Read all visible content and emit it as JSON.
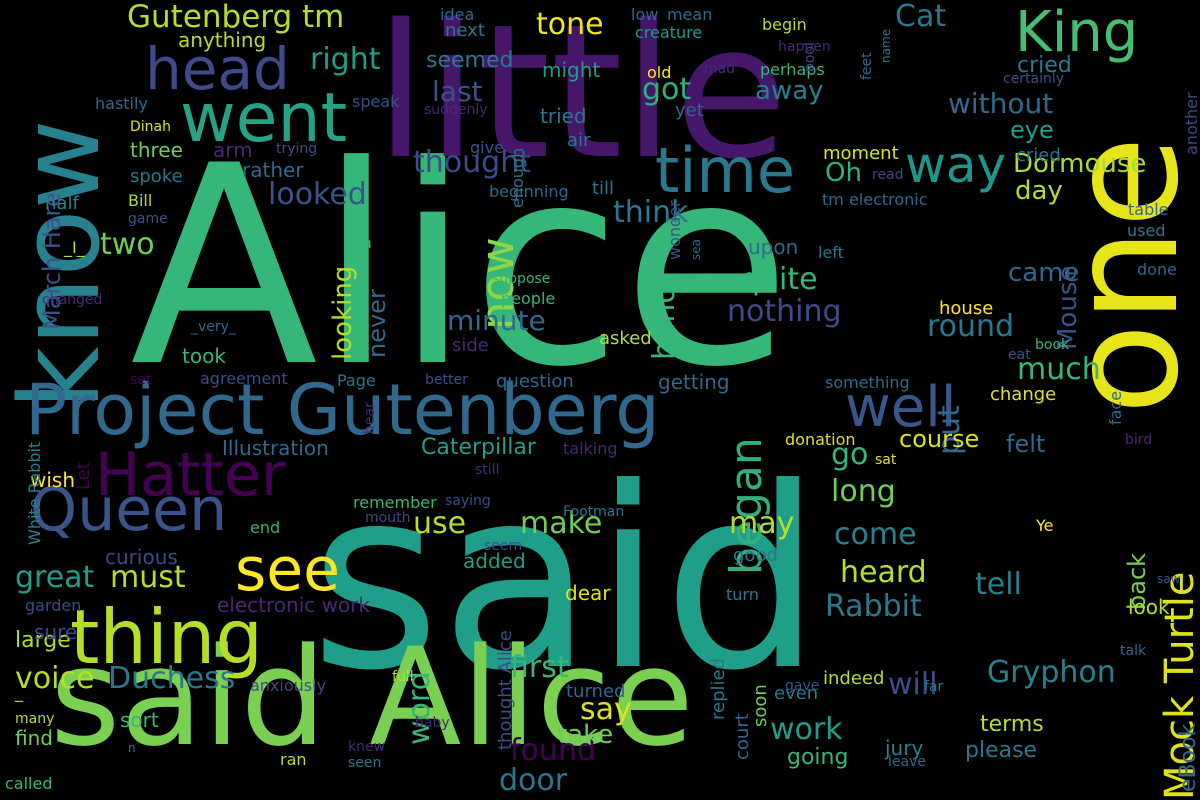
{
  "background": "#000000",
  "palette": [
    "#440154",
    "#482878",
    "#3e4a89",
    "#31688e",
    "#26828e",
    "#1f9e89",
    "#35b779",
    "#6ece58",
    "#b5de2b",
    "#fde725"
  ],
  "words": [
    {
      "text": "Alice",
      "color": "#35b779"
    },
    {
      "text": "said",
      "color": "#1f9e89"
    },
    {
      "text": "little",
      "color": "#46166b"
    },
    {
      "text": "one",
      "color": "#e7e419"
    },
    {
      "text": "know",
      "color": "#26828e"
    },
    {
      "text": "said Alice",
      "color": "#7ad151"
    },
    {
      "text": "Project Gutenberg",
      "color": "#31688e"
    },
    {
      "text": "thing",
      "color": "#b5de2b"
    },
    {
      "text": "went",
      "color": "#26a384"
    },
    {
      "text": "head",
      "color": "#3e4a89"
    },
    {
      "text": "time",
      "color": "#2a788e"
    },
    {
      "text": "King",
      "color": "#44bf70"
    },
    {
      "text": "Queen",
      "color": "#3b528b"
    },
    {
      "text": "Hatter",
      "color": "#440154"
    },
    {
      "text": "see",
      "color": "#fde725"
    },
    {
      "text": "well",
      "color": "#39568c"
    },
    {
      "text": "way",
      "color": "#1f968b"
    },
    {
      "text": "now",
      "color": "#8bd646"
    },
    {
      "text": "began",
      "color": "#2db27d"
    },
    {
      "text": "Mock Turtle",
      "color": "#dde318"
    },
    {
      "text": "Gutenberg tm",
      "color": "#b5de2b"
    },
    {
      "text": "tone",
      "color": "#f1e51d"
    },
    {
      "text": "Cat",
      "color": "#2a788e"
    },
    {
      "text": "right",
      "color": "#1f9e89"
    },
    {
      "text": "seemed",
      "color": "#2a788e"
    },
    {
      "text": "might",
      "color": "#1f9e89"
    },
    {
      "text": "got",
      "color": "#2db27d"
    },
    {
      "text": "last",
      "color": "#3b528b"
    },
    {
      "text": "away",
      "color": "#26828e"
    },
    {
      "text": "without",
      "color": "#31688e"
    },
    {
      "text": "cried",
      "color": "#2a788e"
    },
    {
      "text": "eye",
      "color": "#1f9e89"
    },
    {
      "text": "thought",
      "color": "#3e4a89"
    },
    {
      "text": "Oh",
      "color": "#2db27d"
    },
    {
      "text": "Dormouse",
      "color": "#a8db34"
    },
    {
      "text": "day",
      "color": "#b5de2b"
    },
    {
      "text": "looked",
      "color": "#3b528b"
    },
    {
      "text": "think",
      "color": "#2a788e"
    },
    {
      "text": "two",
      "color": "#6ece58"
    },
    {
      "text": "quite",
      "color": "#35b779"
    },
    {
      "text": "nothing",
      "color": "#3e4a89"
    },
    {
      "text": "round",
      "color": "#2a788e"
    },
    {
      "text": "minute",
      "color": "#31688e"
    },
    {
      "text": "hand",
      "color": "#35b779"
    },
    {
      "text": "looking",
      "color": "#b5de2b"
    },
    {
      "text": "never",
      "color": "#31688e"
    },
    {
      "text": "came",
      "color": "#31688e"
    },
    {
      "text": "Mouse",
      "color": "#3b528b"
    },
    {
      "text": "March Hare",
      "color": "#3b528b"
    },
    {
      "text": "much",
      "color": "#35b779"
    },
    {
      "text": "go",
      "color": "#35b779"
    },
    {
      "text": "long",
      "color": "#6ece58"
    },
    {
      "text": "put",
      "color": "#31688e"
    },
    {
      "text": "course",
      "color": "#dde318"
    },
    {
      "text": "felt",
      "color": "#31688e"
    },
    {
      "text": "Illustration",
      "color": "#31688e"
    },
    {
      "text": "Caterpillar",
      "color": "#1f9e89"
    },
    {
      "text": "make",
      "color": "#6ece58"
    },
    {
      "text": "use",
      "color": "#b5de2b"
    },
    {
      "text": "may",
      "color": "#b5de2b"
    },
    {
      "text": "come",
      "color": "#26828e"
    },
    {
      "text": "heard",
      "color": "#b5de2b"
    },
    {
      "text": "great",
      "color": "#1f9e89"
    },
    {
      "text": "must",
      "color": "#b5de2b"
    },
    {
      "text": "Rabbit",
      "color": "#2a788e"
    },
    {
      "text": "tell",
      "color": "#26828e"
    },
    {
      "text": "back",
      "color": "#7ad151"
    },
    {
      "text": "voice",
      "color": "#b5de2b"
    },
    {
      "text": "Duchess",
      "color": "#2a788e"
    },
    {
      "text": "first",
      "color": "#35b779"
    },
    {
      "text": "say",
      "color": "#dde318"
    },
    {
      "text": "Gryphon",
      "color": "#26828e"
    },
    {
      "text": "will",
      "color": "#3e4a89"
    },
    {
      "text": "word",
      "color": "#35b779"
    },
    {
      "text": "found",
      "color": "#440154"
    },
    {
      "text": "work",
      "color": "#1f9e89"
    },
    {
      "text": "door",
      "color": "#2a788e"
    },
    {
      "text": "take",
      "color": "#6ece58"
    },
    {
      "text": "going",
      "color": "#35b779"
    },
    {
      "text": "terms",
      "color": "#b5de2b"
    },
    {
      "text": "please",
      "color": "#2a788e"
    },
    {
      "text": "eBook",
      "color": "#31688e"
    },
    {
      "text": "jury",
      "color": "#26828e"
    },
    {
      "text": "wish",
      "color": "#fde725"
    },
    {
      "text": "end",
      "color": "#35b779"
    },
    {
      "text": "sort",
      "color": "#35b779"
    },
    {
      "text": "find",
      "color": "#6ece58"
    },
    {
      "text": "large",
      "color": "#b5de2b"
    },
    {
      "text": "sure",
      "color": "#3e4a89"
    },
    {
      "text": "curious",
      "color": "#3e4a89"
    },
    {
      "text": "electronic work",
      "color": "#482878"
    },
    {
      "text": "White Rabbit",
      "color": "#26828e"
    },
    {
      "text": "thought Alice",
      "color": "#3e4a89"
    },
    {
      "text": "replied",
      "color": "#2a788e"
    },
    {
      "text": "court",
      "color": "#31688e"
    },
    {
      "text": "soon",
      "color": "#6ece58"
    },
    {
      "text": "anything",
      "color": "#b5de2b"
    },
    {
      "text": "idea",
      "color": "#31688e"
    },
    {
      "text": "next",
      "color": "#2a788e"
    },
    {
      "text": "low",
      "color": "#31688e"
    },
    {
      "text": "mean",
      "color": "#31688e"
    },
    {
      "text": "creature",
      "color": "#1f9e89"
    },
    {
      "text": "old",
      "color": "#fde725"
    },
    {
      "text": "mad",
      "color": "#482878"
    },
    {
      "text": "perhaps",
      "color": "#35b779"
    },
    {
      "text": "begin",
      "color": "#b5de2b"
    },
    {
      "text": "pool",
      "color": "#3e4a89"
    },
    {
      "text": "happen",
      "color": "#482878"
    },
    {
      "text": "feet",
      "color": "#31688e"
    },
    {
      "text": "name",
      "color": "#2a788e"
    },
    {
      "text": "certainly",
      "color": "#3b528b"
    },
    {
      "text": "hastily",
      "color": "#31688e"
    },
    {
      "text": "speak",
      "color": "#3b528b"
    },
    {
      "text": "suddenly",
      "color": "#482878"
    },
    {
      "text": "tried",
      "color": "#2a788e"
    },
    {
      "text": "yet",
      "color": "#31688e"
    },
    {
      "text": "Dinah",
      "color": "#dde318"
    },
    {
      "text": "air",
      "color": "#2a788e"
    },
    {
      "text": "three",
      "color": "#6ece58"
    },
    {
      "text": "arm",
      "color": "#482878"
    },
    {
      "text": "trying",
      "color": "#3e4a89"
    },
    {
      "text": "give",
      "color": "#3b528b"
    },
    {
      "text": "moment",
      "color": "#dde318"
    },
    {
      "text": "spoke",
      "color": "#2a788e"
    },
    {
      "text": "rather",
      "color": "#31688e"
    },
    {
      "text": "read",
      "color": "#3e4a89"
    },
    {
      "text": "half",
      "color": "#26828e"
    },
    {
      "text": "beginning",
      "color": "#31688e"
    },
    {
      "text": "till",
      "color": "#2a788e"
    },
    {
      "text": "tm electronic",
      "color": "#31688e"
    },
    {
      "text": "Bill",
      "color": "#b5de2b"
    },
    {
      "text": "game",
      "color": "#3b528b"
    },
    {
      "text": "enough",
      "color": "#2a788e"
    },
    {
      "text": "table",
      "color": "#31688e"
    },
    {
      "text": "another",
      "color": "#3e4a89"
    },
    {
      "text": "_I_",
      "color": "#b5de2b"
    },
    {
      "text": "tea",
      "color": "#35b779"
    },
    {
      "text": "upon",
      "color": "#31688e"
    },
    {
      "text": "left",
      "color": "#2a788e"
    },
    {
      "text": "used",
      "color": "#2a788e"
    },
    {
      "text": "suppose",
      "color": "#35b779"
    },
    {
      "text": "wonder",
      "color": "#3b528b"
    },
    {
      "text": "sea",
      "color": "#31688e"
    },
    {
      "text": "done",
      "color": "#31688e"
    },
    {
      "text": "changed",
      "color": "#482878"
    },
    {
      "text": "people",
      "color": "#35b779"
    },
    {
      "text": "house",
      "color": "#fde725"
    },
    {
      "text": "cried",
      "color": "#2a788e"
    },
    {
      "text": "_very_",
      "color": "#31688e"
    },
    {
      "text": "asked",
      "color": "#b5de2b"
    },
    {
      "text": "side",
      "color": "#482878"
    },
    {
      "text": "book",
      "color": "#35b779"
    },
    {
      "text": "eat",
      "color": "#3b528b"
    },
    {
      "text": "took",
      "color": "#35b779"
    },
    {
      "text": "set",
      "color": "#440154"
    },
    {
      "text": "agreement",
      "color": "#3e4a89"
    },
    {
      "text": "Page",
      "color": "#2a788e"
    },
    {
      "text": "better",
      "color": "#3e4a89"
    },
    {
      "text": "question",
      "color": "#31688e"
    },
    {
      "text": "getting",
      "color": "#31688e"
    },
    {
      "text": "something",
      "color": "#31688e"
    },
    {
      "text": "change",
      "color": "#dde318"
    },
    {
      "text": "face",
      "color": "#31688e"
    },
    {
      "text": "hear",
      "color": "#482878"
    },
    {
      "text": "talking",
      "color": "#482878"
    },
    {
      "text": "donation",
      "color": "#dde318"
    },
    {
      "text": "sat",
      "color": "#dde318"
    },
    {
      "text": "bird",
      "color": "#482878"
    },
    {
      "text": "Let",
      "color": "#440154"
    },
    {
      "text": "still",
      "color": "#482878"
    },
    {
      "text": "remember",
      "color": "#35b779"
    },
    {
      "text": "saying",
      "color": "#3e4a89"
    },
    {
      "text": "mouth",
      "color": "#3e4a89"
    },
    {
      "text": "Footman",
      "color": "#2a788e"
    },
    {
      "text": "seem",
      "color": "#3e4a89"
    },
    {
      "text": "added",
      "color": "#1f9e89"
    },
    {
      "text": "Ye",
      "color": "#fde725"
    },
    {
      "text": "good",
      "color": "#2a788e"
    },
    {
      "text": "saw",
      "color": "#3b528b"
    },
    {
      "text": "dear",
      "color": "#dde318"
    },
    {
      "text": "turn",
      "color": "#2a788e"
    },
    {
      "text": "garden",
      "color": "#3e4a89"
    },
    {
      "text": "look",
      "color": "#b5de2b"
    },
    {
      "text": "talk",
      "color": "#31688e"
    },
    {
      "text": "gave",
      "color": "#3b528b"
    },
    {
      "text": "far",
      "color": "#2a788e"
    },
    {
      "text": "indeed",
      "color": "#b5de2b"
    },
    {
      "text": "full",
      "color": "#b5de2b"
    },
    {
      "text": "anxiously",
      "color": "#3e4a89"
    },
    {
      "text": "turned",
      "color": "#31688e"
    },
    {
      "text": "even",
      "color": "#2a788e"
    },
    {
      "text": "many",
      "color": "#b5de2b"
    },
    {
      "text": "baby",
      "color": "#482878"
    },
    {
      "text": "n",
      "color": "#2a788e"
    },
    {
      "text": "knew",
      "color": "#482878"
    },
    {
      "text": "seen",
      "color": "#2a788e"
    },
    {
      "text": "ran",
      "color": "#b5de2b"
    },
    {
      "text": "leave",
      "color": "#31688e"
    },
    {
      "text": "called",
      "color": "#35b779"
    },
    {
      "text": "_",
      "color": "#b5de2b"
    }
  ]
}
